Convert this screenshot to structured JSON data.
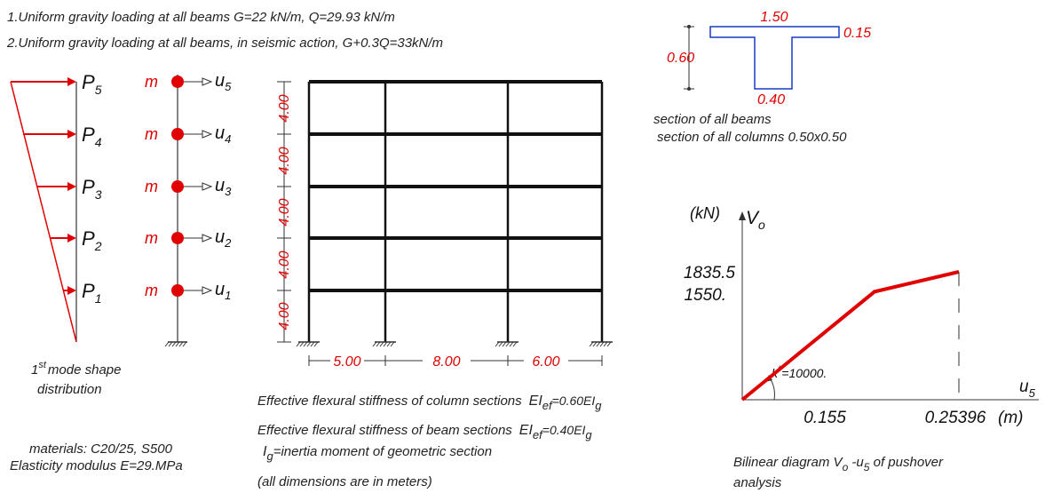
{
  "notes": {
    "line1": "1.Uniform gravity loading at all beams G=22 kN/m, Q=29.93 kN/m",
    "line2": "2.Uniform gravity loading at all beams, in seismic action, G+0.3Q=33kN/m"
  },
  "loads": {
    "labels": [
      "P",
      "P",
      "P",
      "P",
      "P"
    ],
    "subs": [
      "5",
      "4",
      "3",
      "2",
      "1"
    ],
    "caption_pre": "1",
    "caption_sup": "st",
    "caption_line1": "mode shape",
    "caption_line2": "distribution"
  },
  "masses": {
    "mass_label": "m",
    "disp_labels": [
      "u",
      "u",
      "u",
      "u",
      "u"
    ],
    "disp_subs": [
      "5",
      "4",
      "3",
      "2",
      "1"
    ]
  },
  "frame": {
    "storey_heights": [
      "4.00",
      "4.00",
      "4.00",
      "4.00",
      "4.00"
    ],
    "bay_widths": [
      "5.00",
      "8.00",
      "6.00"
    ]
  },
  "section": {
    "flange_width": "1.50",
    "flange_thk": "0.15",
    "depth": "0.60",
    "web_width": "0.40",
    "caption1": "section of all beams",
    "caption2": "section of all columns 0.50x0.50"
  },
  "stiffness": {
    "col_text": "Effective flexural stiffness of column sections",
    "col_EI": "EI",
    "col_ef": "ef",
    "col_val": "=0.60EI",
    "col_g": "g",
    "beam_text": "Effective flexural stiffness of beam sections",
    "beam_EI": "EI",
    "beam_ef": "ef",
    "beam_val": "=0.40EI",
    "beam_g": "g",
    "ig_I": "I",
    "ig_g": "g",
    "ig_text": "=inertia moment of geometric section",
    "dims_note": "(all dimensions are in meters)"
  },
  "materials": {
    "line1": "materials: C20/25, S500",
    "line2": "Elasticity modulus E=29.MPa"
  },
  "chart_data": {
    "type": "line",
    "y_unit": "(kN)",
    "ylabel_main": "V",
    "ylabel_sub": "o",
    "xlabel_main": "u",
    "xlabel_sub": "5",
    "x": [
      0,
      0.155,
      0.25396
    ],
    "y": [
      0,
      1550,
      1835.5
    ],
    "x_tick_labels": [
      "0.155",
      "0.25396"
    ],
    "x_unit": "(m)",
    "y_tick_labels": [
      "1835.5",
      "1550."
    ],
    "k_label": "k",
    "k_sup": "*",
    "k_value": "=10000.",
    "caption_pre": "Bilinear diagram V",
    "caption_sub1": "o",
    "caption_mid": " -u",
    "caption_sub2": "5",
    "caption_post": " of pushover",
    "caption_line2": "analysis",
    "line_color": "#e00000"
  }
}
